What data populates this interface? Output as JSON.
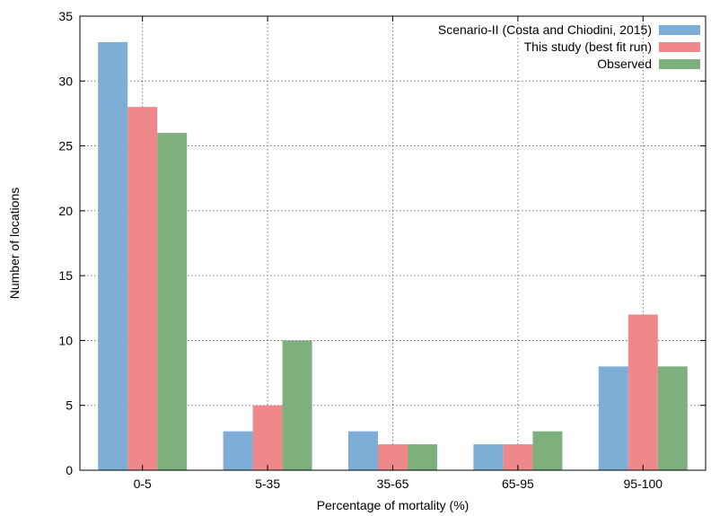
{
  "chart_data": {
    "type": "bar",
    "categories": [
      "0-5",
      "5-35",
      "35-65",
      "65-95",
      "95-100"
    ],
    "series": [
      {
        "name": "Scenario-II (Costa and Chiodini, 2015)",
        "color": "#7eaed6",
        "values": [
          33,
          3,
          3,
          2,
          8
        ]
      },
      {
        "name": "This study (best fit run)",
        "color": "#ee888b",
        "values": [
          28,
          5,
          2,
          2,
          12
        ]
      },
      {
        "name": "Observed",
        "color": "#7db07d",
        "values": [
          26,
          10,
          2,
          3,
          8
        ]
      }
    ],
    "xlabel": "Percentage of mortality (%)",
    "ylabel": "Number of locations",
    "ylim": [
      0,
      35
    ],
    "yticks": [
      "0",
      "5",
      "10",
      "15",
      "20",
      "25",
      "30",
      "35"
    ],
    "grid": true,
    "legend_position": "top-right"
  }
}
